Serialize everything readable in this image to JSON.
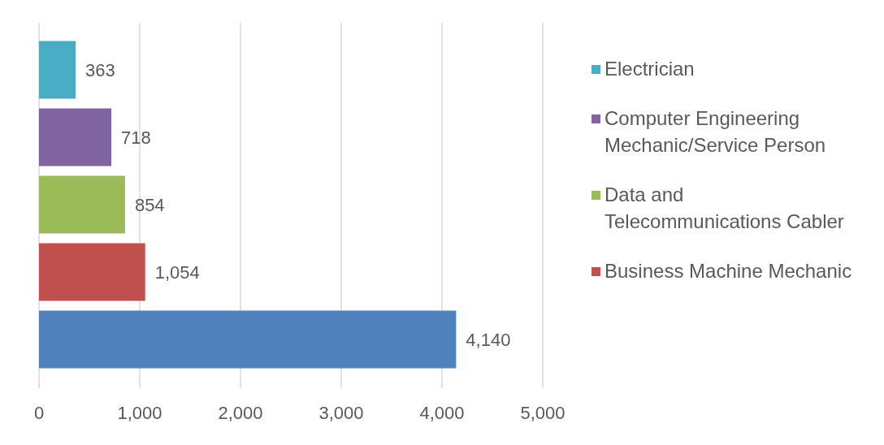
{
  "chart_data": {
    "type": "bar",
    "orientation": "horizontal",
    "categories": [
      null
    ],
    "series": [
      {
        "name": "Electrician",
        "color": "#4bacc6",
        "values": [
          363
        ],
        "value_labels": [
          "363"
        ]
      },
      {
        "name": "Computer Engineering Mechanic/Service Person",
        "color": "#8064a2",
        "values": [
          718
        ],
        "value_labels": [
          "718"
        ]
      },
      {
        "name": "Data and Telecommunications Cabler",
        "color": "#9bbb59",
        "values": [
          854
        ],
        "value_labels": [
          "854"
        ]
      },
      {
        "name": "Business Machine Mechanic",
        "color": "#c0504d",
        "values": [
          1054
        ],
        "value_labels": [
          "1,054"
        ]
      },
      {
        "color": "#4f81bd",
        "values": [
          4140
        ],
        "value_labels": [
          "4,140"
        ]
      }
    ],
    "xlim": [
      0,
      5000
    ],
    "xticks": [
      0,
      {
        "value": 1000,
        "label": "1,000"
      },
      {
        "value": 2000,
        "label": "2,000"
      },
      {
        "value": 3000,
        "label": "3,000"
      },
      {
        "value": 4000,
        "label": "4,000"
      },
      {
        "value": 5000,
        "label": "5,000"
      }
    ],
    "grid": "x",
    "legend": "right"
  }
}
